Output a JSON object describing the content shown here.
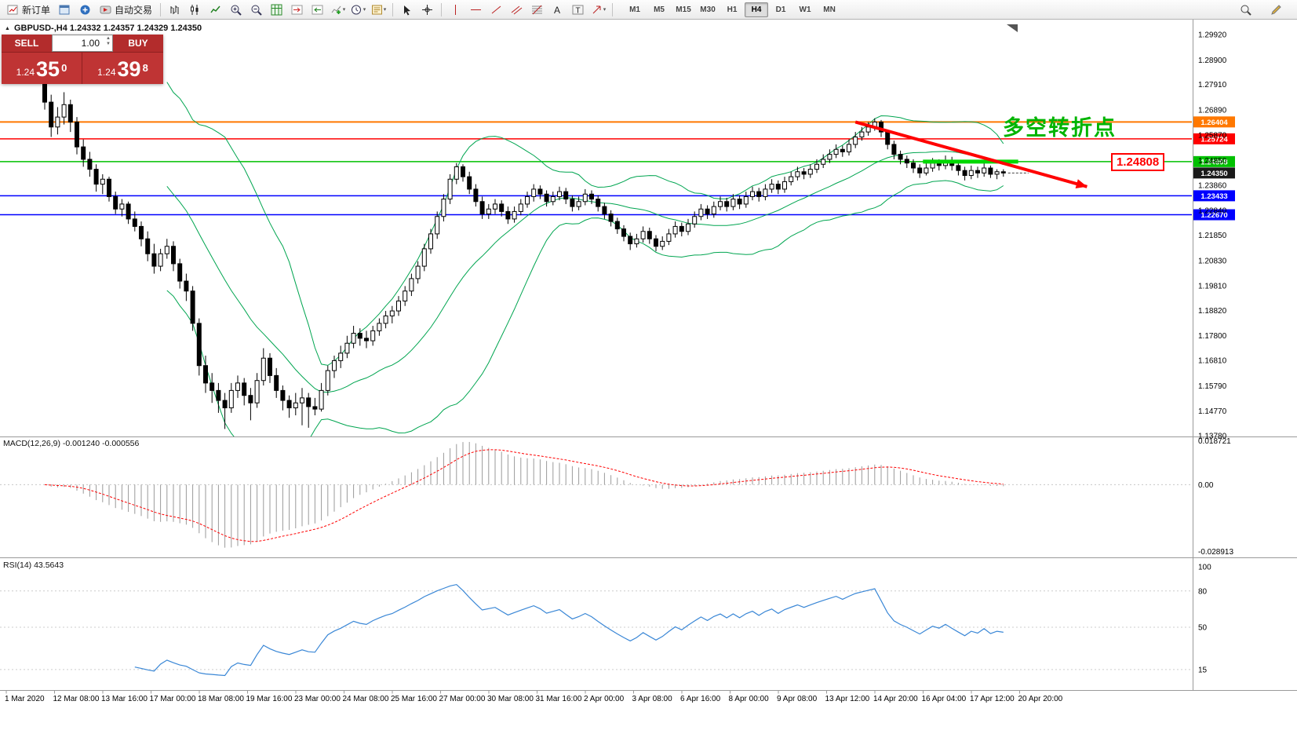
{
  "toolbar": {
    "new_order_label": "新订单",
    "auto_trading_label": "自动交易",
    "timeframes": [
      "M1",
      "M5",
      "M15",
      "M30",
      "H1",
      "H4",
      "D1",
      "W1",
      "MN"
    ],
    "active_timeframe": "H4"
  },
  "trade_panel": {
    "sell_label": "SELL",
    "buy_label": "BUY",
    "volume": "1.00",
    "sell_price": {
      "prefix": "1.24",
      "big": "35",
      "sup": "0"
    },
    "buy_price": {
      "prefix": "1.24",
      "big": "39",
      "sup": "8"
    }
  },
  "chart_header": {
    "title": "GBPUSD-,H4  1.24332 1.24357 1.24329 1.24350"
  },
  "annotation": {
    "text": "多空转折点",
    "text_color": "#00b400",
    "price_label": "1.24808",
    "arrow_color": "#ff0000"
  },
  "macd": {
    "label": "MACD(12,26,9) -0.001240 -0.000556",
    "scale_top": "0.018721",
    "scale_zero": "0.00",
    "scale_bottom": "-0.028913"
  },
  "rsi": {
    "label": "RSI(14) 43.5643",
    "levels": [
      100,
      80,
      50,
      15
    ]
  },
  "chart_data": {
    "type": "candlestick",
    "symbol": "GBPUSD-",
    "timeframe": "H4",
    "ohlc_display": {
      "open": "1.24332",
      "high": "1.24357",
      "low": "1.24329",
      "close": "1.24350"
    },
    "y_axis_labels": [
      "1.29920",
      "1.28900",
      "1.27910",
      "1.26890",
      "1.25870",
      "1.24850",
      "1.23860",
      "1.22840",
      "1.21850",
      "1.20830",
      "1.19810",
      "1.18820",
      "1.17800",
      "1.16810",
      "1.15790",
      "1.14770",
      "1.13780"
    ],
    "x_axis_labels": [
      "1 Mar 2020",
      "12 Mar 08:00",
      "13 Mar 16:00",
      "17 Mar 00:00",
      "18 Mar 08:00",
      "19 Mar 16:00",
      "23 Mar 00:00",
      "24 Mar 08:00",
      "25 Mar 16:00",
      "27 Mar 00:00",
      "30 Mar 08:00",
      "31 Mar 16:00",
      "2 Apr 00:00",
      "3 Apr 08:00",
      "6 Apr 16:00",
      "8 Apr 00:00",
      "9 Apr 08:00",
      "13 Apr 12:00",
      "14 Apr 20:00",
      "16 Apr 04:00",
      "17 Apr 12:00",
      "20 Apr 20:00"
    ],
    "levels": [
      {
        "label": "1.26404",
        "price": 1.26404,
        "color": "#ff7800",
        "width": 2
      },
      {
        "label": "1.25724",
        "price": 1.25724,
        "color": "#ff0000",
        "width": 1.5
      },
      {
        "label": "1.24808",
        "price": 1.24808,
        "color": "#00c000",
        "width": 1.5
      },
      {
        "label": "1.24350",
        "price": 1.2435,
        "color": "#1a1a1a",
        "width": 0,
        "current": true
      },
      {
        "label": "1.23433",
        "price": 1.23433,
        "color": "#0000ff",
        "width": 1.5
      },
      {
        "label": "1.22670",
        "price": 1.2267,
        "color": "#0000ff",
        "width": 1.5
      }
    ],
    "indicators": {
      "bollinger": {
        "period": 20,
        "deviation": 2,
        "color": "#00a550"
      },
      "macd": {
        "fast": 12,
        "slow": 26,
        "signal": 9,
        "display_top": 0.019,
        "display_bottom": -0.029,
        "bar_color": "#9a9a9a",
        "signal_color": "#ff0000"
      },
      "rsi": {
        "period": 14,
        "current": 43.5643,
        "color": "#3a87d6"
      }
    },
    "objects": {
      "green_segment": {
        "from_bar": 136.5,
        "to_bar": 151.3,
        "price": 1.24808,
        "color": "#00d800",
        "width": 5
      },
      "red_arrow": {
        "from_bar": 126,
        "from_price": 1.264,
        "to_bar": 162,
        "to_price": 1.238,
        "color": "#ff0000",
        "width": 4
      }
    },
    "candles": [
      [
        1.286,
        1.288,
        1.269,
        1.272
      ],
      [
        1.272,
        1.275,
        1.258,
        1.262
      ],
      [
        1.262,
        1.27,
        1.259,
        1.266
      ],
      [
        1.266,
        1.276,
        1.263,
        1.271
      ],
      [
        1.271,
        1.273,
        1.26,
        1.264
      ],
      [
        1.264,
        1.266,
        1.251,
        1.254
      ],
      [
        1.254,
        1.257,
        1.246,
        1.249
      ],
      [
        1.249,
        1.252,
        1.242,
        1.245
      ],
      [
        1.245,
        1.247,
        1.236,
        1.239
      ],
      [
        1.239,
        1.243,
        1.235,
        1.241
      ],
      [
        1.241,
        1.242,
        1.232,
        1.234
      ],
      [
        1.234,
        1.236,
        1.227,
        1.229
      ],
      [
        1.229,
        1.233,
        1.226,
        1.231
      ],
      [
        1.231,
        1.232,
        1.223,
        1.225
      ],
      [
        1.225,
        1.228,
        1.22,
        1.222
      ],
      [
        1.222,
        1.224,
        1.214,
        1.217
      ],
      [
        1.217,
        1.22,
        1.208,
        1.211
      ],
      [
        1.211,
        1.215,
        1.203,
        1.206
      ],
      [
        1.206,
        1.213,
        1.204,
        1.211
      ],
      [
        1.211,
        1.217,
        1.209,
        1.214
      ],
      [
        1.214,
        1.216,
        1.204,
        1.207
      ],
      [
        1.207,
        1.209,
        1.197,
        1.2
      ],
      [
        1.2,
        1.203,
        1.192,
        1.196
      ],
      [
        1.196,
        1.198,
        1.18,
        1.183
      ],
      [
        1.183,
        1.185,
        1.162,
        1.166
      ],
      [
        1.166,
        1.17,
        1.155,
        1.159
      ],
      [
        1.159,
        1.163,
        1.151,
        1.156
      ],
      [
        1.156,
        1.159,
        1.147,
        1.152
      ],
      [
        1.152,
        1.155,
        1.1405,
        1.149
      ],
      [
        1.149,
        1.159,
        1.147,
        1.156
      ],
      [
        1.156,
        1.162,
        1.153,
        1.159
      ],
      [
        1.159,
        1.161,
        1.15,
        1.154
      ],
      [
        1.154,
        1.157,
        1.144,
        1.151
      ],
      [
        1.151,
        1.163,
        1.149,
        1.16
      ],
      [
        1.16,
        1.173,
        1.158,
        1.169
      ],
      [
        1.169,
        1.171,
        1.159,
        1.162
      ],
      [
        1.162,
        1.165,
        1.153,
        1.156
      ],
      [
        1.156,
        1.158,
        1.148,
        1.152
      ],
      [
        1.152,
        1.154,
        1.145,
        1.149
      ],
      [
        1.149,
        1.155,
        1.146,
        1.151
      ],
      [
        1.151,
        1.157,
        1.142,
        1.153
      ],
      [
        1.153,
        1.155,
        1.141,
        1.1495
      ],
      [
        1.1495,
        1.153,
        1.146,
        1.1485
      ],
      [
        1.1485,
        1.159,
        1.1475,
        1.156
      ],
      [
        1.156,
        1.166,
        1.154,
        1.164
      ],
      [
        1.164,
        1.17,
        1.161,
        1.168
      ],
      [
        1.168,
        1.174,
        1.165,
        1.171
      ],
      [
        1.171,
        1.178,
        1.169,
        1.175
      ],
      [
        1.175,
        1.182,
        1.173,
        1.179
      ],
      [
        1.179,
        1.181,
        1.174,
        1.177
      ],
      [
        1.177,
        1.18,
        1.173,
        1.176
      ],
      [
        1.176,
        1.182,
        1.174,
        1.18
      ],
      [
        1.18,
        1.185,
        1.178,
        1.183
      ],
      [
        1.183,
        1.188,
        1.181,
        1.186
      ],
      [
        1.186,
        1.19,
        1.183,
        1.188
      ],
      [
        1.188,
        1.194,
        1.186,
        1.192
      ],
      [
        1.192,
        1.198,
        1.19,
        1.196
      ],
      [
        1.196,
        1.203,
        1.194,
        1.201
      ],
      [
        1.201,
        1.208,
        1.199,
        1.206
      ],
      [
        1.206,
        1.215,
        1.204,
        1.213
      ],
      [
        1.213,
        1.221,
        1.211,
        1.219
      ],
      [
        1.219,
        1.228,
        1.217,
        1.226
      ],
      [
        1.226,
        1.235,
        1.224,
        1.233
      ],
      [
        1.233,
        1.243,
        1.231,
        1.241
      ],
      [
        1.241,
        1.2475,
        1.239,
        1.246
      ],
      [
        1.246,
        1.247,
        1.24,
        1.242
      ],
      [
        1.242,
        1.244,
        1.235,
        1.237
      ],
      [
        1.237,
        1.239,
        1.23,
        1.232
      ],
      [
        1.232,
        1.234,
        1.225,
        1.227
      ],
      [
        1.227,
        1.231,
        1.225,
        1.229
      ],
      [
        1.229,
        1.233,
        1.227,
        1.231
      ],
      [
        1.231,
        1.2325,
        1.226,
        1.228
      ],
      [
        1.228,
        1.23,
        1.223,
        1.225
      ],
      [
        1.225,
        1.23,
        1.2235,
        1.228
      ],
      [
        1.228,
        1.233,
        1.2265,
        1.231
      ],
      [
        1.231,
        1.236,
        1.2295,
        1.234
      ],
      [
        1.234,
        1.239,
        1.232,
        1.237
      ],
      [
        1.237,
        1.2385,
        1.233,
        1.235
      ],
      [
        1.235,
        1.2365,
        1.23,
        1.232
      ],
      [
        1.232,
        1.236,
        1.2305,
        1.234
      ],
      [
        1.234,
        1.238,
        1.2325,
        1.236
      ],
      [
        1.236,
        1.2375,
        1.231,
        1.233
      ],
      [
        1.233,
        1.2345,
        1.228,
        1.23
      ],
      [
        1.23,
        1.234,
        1.2285,
        1.232
      ],
      [
        1.232,
        1.237,
        1.2305,
        1.235
      ],
      [
        1.235,
        1.2365,
        1.231,
        1.233
      ],
      [
        1.233,
        1.2345,
        1.228,
        1.23
      ],
      [
        1.23,
        1.2315,
        1.225,
        1.227
      ],
      [
        1.227,
        1.2285,
        1.222,
        1.224
      ],
      [
        1.224,
        1.2255,
        1.219,
        1.221
      ],
      [
        1.221,
        1.2225,
        1.216,
        1.218
      ],
      [
        1.218,
        1.2195,
        1.2125,
        1.215
      ],
      [
        1.215,
        1.219,
        1.2135,
        1.217
      ],
      [
        1.217,
        1.222,
        1.2155,
        1.22
      ],
      [
        1.22,
        1.2215,
        1.215,
        1.217
      ],
      [
        1.217,
        1.2185,
        1.212,
        1.214
      ],
      [
        1.214,
        1.218,
        1.2125,
        1.216
      ],
      [
        1.216,
        1.221,
        1.2145,
        1.219
      ],
      [
        1.219,
        1.224,
        1.2175,
        1.222
      ],
      [
        1.222,
        1.2235,
        1.218,
        1.22
      ],
      [
        1.22,
        1.225,
        1.2185,
        1.223
      ],
      [
        1.223,
        1.228,
        1.2215,
        1.226
      ],
      [
        1.226,
        1.231,
        1.2245,
        1.229
      ],
      [
        1.229,
        1.2305,
        1.225,
        1.227
      ],
      [
        1.227,
        1.232,
        1.2255,
        1.23
      ],
      [
        1.23,
        1.234,
        1.2285,
        1.232
      ],
      [
        1.232,
        1.2335,
        1.228,
        1.23
      ],
      [
        1.23,
        1.235,
        1.2285,
        1.233
      ],
      [
        1.233,
        1.2345,
        1.229,
        1.231
      ],
      [
        1.231,
        1.236,
        1.2295,
        1.234
      ],
      [
        1.234,
        1.238,
        1.2325,
        1.236
      ],
      [
        1.236,
        1.2375,
        1.232,
        1.234
      ],
      [
        1.234,
        1.239,
        1.2325,
        1.237
      ],
      [
        1.237,
        1.241,
        1.2355,
        1.239
      ],
      [
        1.239,
        1.2405,
        1.235,
        1.237
      ],
      [
        1.237,
        1.242,
        1.2355,
        1.24
      ],
      [
        1.24,
        1.244,
        1.2385,
        1.242
      ],
      [
        1.242,
        1.246,
        1.2405,
        1.244
      ],
      [
        1.244,
        1.2455,
        1.241,
        1.243
      ],
      [
        1.243,
        1.247,
        1.2415,
        1.245
      ],
      [
        1.245,
        1.249,
        1.2435,
        1.247
      ],
      [
        1.247,
        1.251,
        1.2455,
        1.249
      ],
      [
        1.249,
        1.253,
        1.2475,
        1.251
      ],
      [
        1.251,
        1.255,
        1.2495,
        1.253
      ],
      [
        1.253,
        1.2545,
        1.25,
        1.252
      ],
      [
        1.252,
        1.257,
        1.2505,
        1.255
      ],
      [
        1.255,
        1.26,
        1.2535,
        1.258
      ],
      [
        1.258,
        1.262,
        1.2565,
        1.26
      ],
      [
        1.26,
        1.264,
        1.2585,
        1.262
      ],
      [
        1.262,
        1.2655,
        1.2605,
        1.264
      ],
      [
        1.264,
        1.2648,
        1.258,
        1.26
      ],
      [
        1.26,
        1.261,
        1.253,
        1.255
      ],
      [
        1.255,
        1.2565,
        1.249,
        1.251
      ],
      [
        1.251,
        1.2525,
        1.247,
        1.249
      ],
      [
        1.249,
        1.2505,
        1.2455,
        1.2475
      ],
      [
        1.2475,
        1.249,
        1.2435,
        1.2455
      ],
      [
        1.2455,
        1.247,
        1.2415,
        1.2435
      ],
      [
        1.2435,
        1.2475,
        1.2425,
        1.2455
      ],
      [
        1.2455,
        1.2495,
        1.244,
        1.2475
      ],
      [
        1.2475,
        1.249,
        1.2445,
        1.2465
      ],
      [
        1.2465,
        1.2505,
        1.245,
        1.2485
      ],
      [
        1.2485,
        1.25,
        1.2445,
        1.2465
      ],
      [
        1.2465,
        1.248,
        1.2425,
        1.2445
      ],
      [
        1.2445,
        1.246,
        1.2405,
        1.2425
      ],
      [
        1.2425,
        1.2465,
        1.241,
        1.2445
      ],
      [
        1.2445,
        1.246,
        1.2415,
        1.2435
      ],
      [
        1.2435,
        1.2475,
        1.242,
        1.2455
      ],
      [
        1.2455,
        1.2465,
        1.2415,
        1.243
      ],
      [
        1.243,
        1.245,
        1.241,
        1.244
      ],
      [
        1.244,
        1.245,
        1.242,
        1.2435
      ]
    ]
  }
}
